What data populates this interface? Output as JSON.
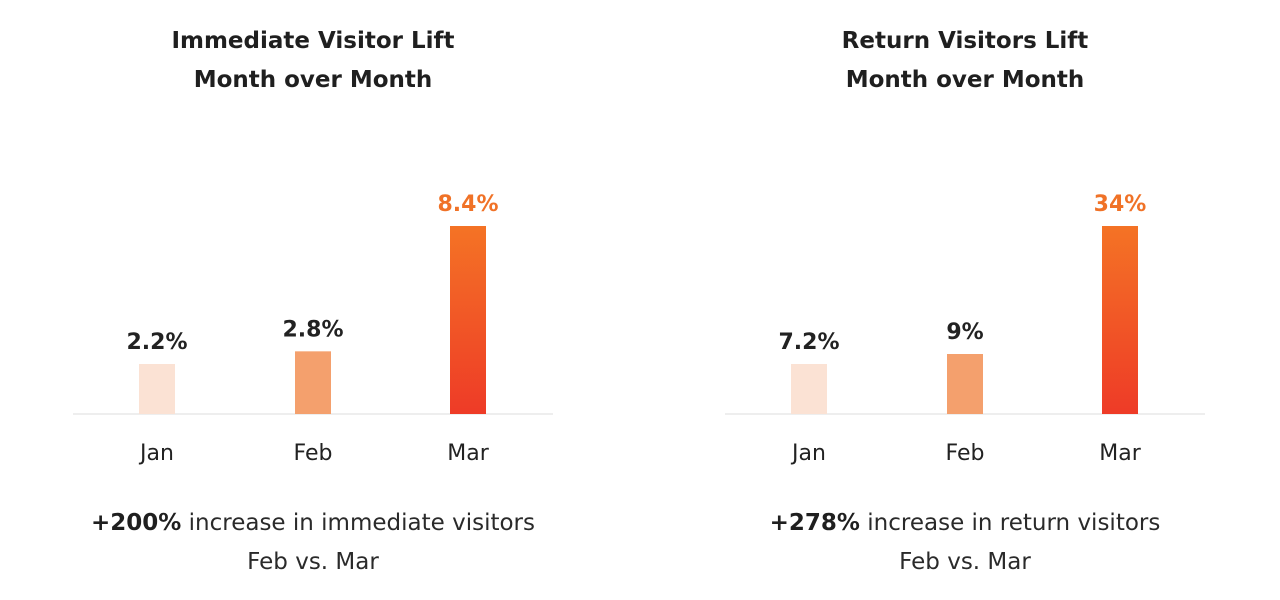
{
  "colors": {
    "bar_light": "#fbe2d4",
    "bar_medium": "#f4a06d",
    "bar_highlight_top": "#f47325",
    "bar_highlight_bottom": "#ee3b27",
    "highlight_label": "#f07227",
    "axis": "#dcdcdc",
    "text": "#222222"
  },
  "chart_data": [
    {
      "type": "bar",
      "title_line1": "Immediate Visitor Lift",
      "title_line2": "Month over Month",
      "categories": [
        "Jan",
        "Feb",
        "Mar"
      ],
      "values": [
        2.2,
        2.8,
        8.4
      ],
      "labels": [
        "2.2%",
        "2.8%",
        "8.4%"
      ],
      "ylim": [
        0,
        8.4
      ],
      "highlight_index": 2,
      "summary_bold": "+200%",
      "summary_text": " increase in immediate visitors",
      "summary_line2": "Feb vs. Mar"
    },
    {
      "type": "bar",
      "title_line1": "Return Visitors Lift",
      "title_line2": "Month over Month",
      "categories": [
        "Jan",
        "Feb",
        "Mar"
      ],
      "values": [
        7.2,
        9,
        34
      ],
      "labels": [
        "7.2%",
        "9%",
        "34%"
      ],
      "ylim": [
        0,
        34
      ],
      "highlight_index": 2,
      "summary_bold": "+278%",
      "summary_text": " increase in return visitors",
      "summary_line2": "Feb vs. Mar"
    }
  ]
}
